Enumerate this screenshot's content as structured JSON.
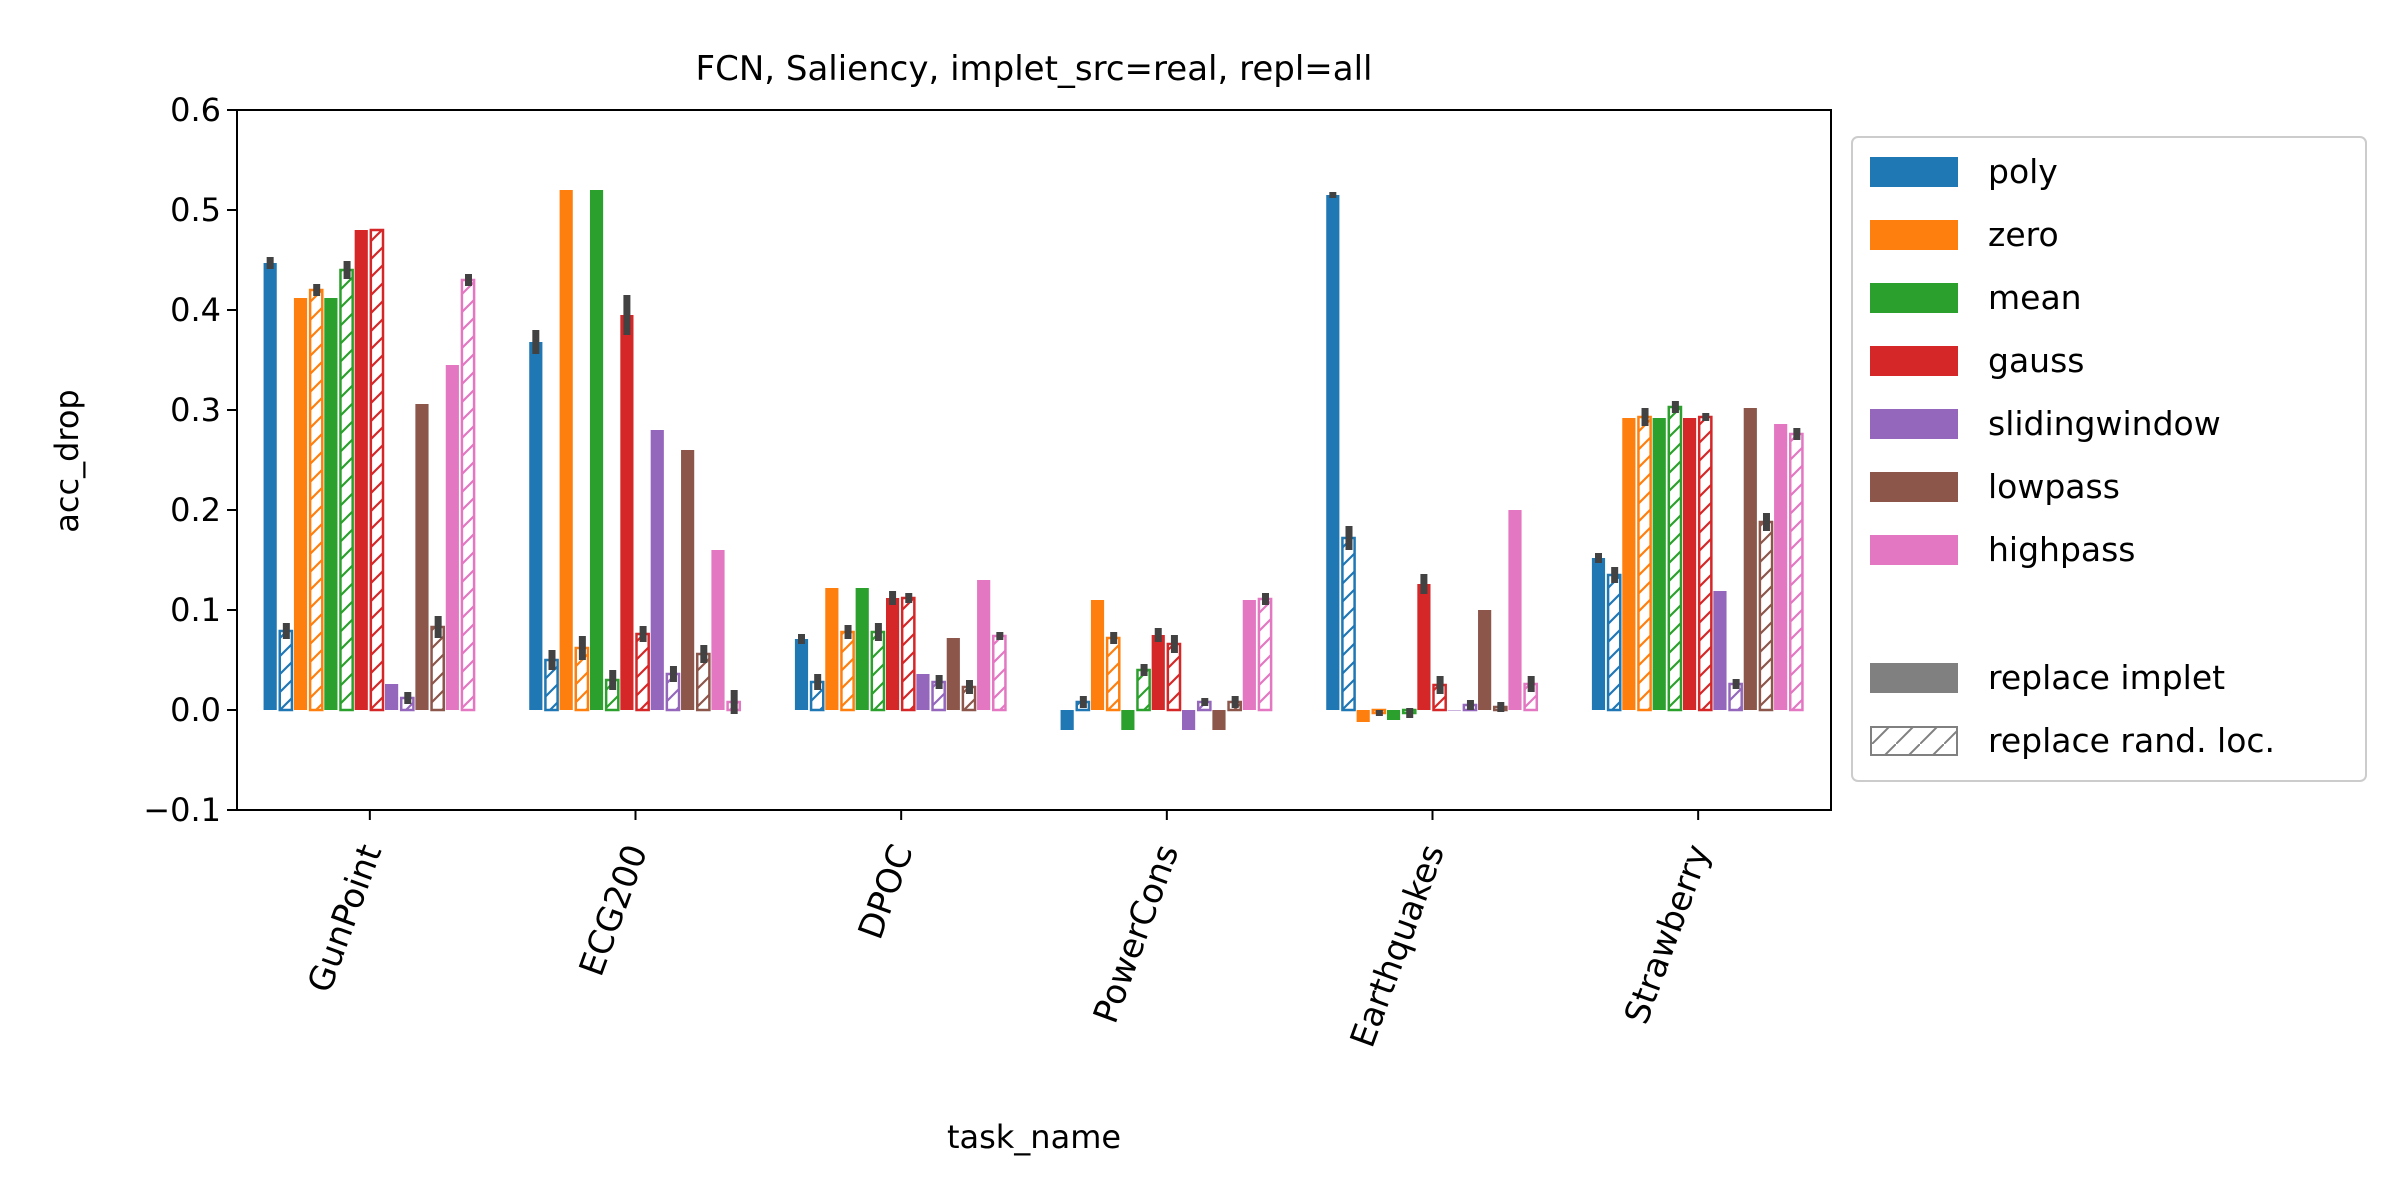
{
  "chart_data": {
    "type": "bar",
    "title": "FCN, Saliency, implet_src=real, repl=all",
    "xlabel": "task_name",
    "ylabel": "acc_drop",
    "ylim": [
      -0.1,
      0.6
    ],
    "yticks": [
      -0.1,
      0.0,
      0.1,
      0.2,
      0.3,
      0.4,
      0.5,
      0.6
    ],
    "ytick_labels": [
      "−0.1",
      "0.0",
      "0.1",
      "0.2",
      "0.3",
      "0.4",
      "0.5",
      "0.6"
    ],
    "categories": [
      "GunPoint",
      "ECG200",
      "DPOC",
      "PowerCons",
      "Earthquakes",
      "Strawberry"
    ],
    "legend_position": "outside-right",
    "grid": false,
    "series": [
      {
        "name": "poly",
        "color": "#1f77b4",
        "implet": [
          0.447,
          0.368,
          0.071,
          -0.02,
          0.515,
          0.152
        ],
        "implet_err": [
          0.006,
          0.012,
          0.005,
          0.0,
          0.003,
          0.005
        ],
        "random": [
          0.079,
          0.05,
          0.028,
          0.008,
          0.172,
          0.135
        ],
        "random_err": [
          0.008,
          0.01,
          0.008,
          0.006,
          0.012,
          0.008
        ]
      },
      {
        "name": "zero",
        "color": "#ff7f0e",
        "implet": [
          0.412,
          0.52,
          0.122,
          0.11,
          -0.012,
          0.292
        ],
        "implet_err": [
          0.0,
          0.0,
          0.0,
          0.0,
          0.0,
          0.0
        ],
        "random": [
          0.42,
          0.062,
          0.078,
          0.072,
          -0.003,
          0.293
        ],
        "random_err": [
          0.006,
          0.012,
          0.007,
          0.006,
          0.003,
          0.009
        ]
      },
      {
        "name": "mean",
        "color": "#2ca02c",
        "implet": [
          0.412,
          0.52,
          0.122,
          -0.02,
          -0.01,
          0.292
        ],
        "implet_err": [
          0.0,
          0.0,
          0.0,
          0.0,
          0.0,
          0.0
        ],
        "random": [
          0.44,
          0.03,
          0.078,
          0.04,
          -0.003,
          0.303
        ],
        "random_err": [
          0.009,
          0.01,
          0.009,
          0.006,
          0.005,
          0.006
        ]
      },
      {
        "name": "gauss",
        "color": "#d62728",
        "implet": [
          0.48,
          0.395,
          0.112,
          0.075,
          0.126,
          0.292
        ],
        "implet_err": [
          0.0,
          0.02,
          0.007,
          0.007,
          0.01,
          0.0
        ],
        "random": [
          0.48,
          0.076,
          0.112,
          0.066,
          0.025,
          0.293
        ],
        "random_err": [
          0.0,
          0.008,
          0.005,
          0.009,
          0.009,
          0.004
        ]
      },
      {
        "name": "slidingwindow",
        "color": "#9467bd",
        "implet": [
          0.026,
          0.28,
          0.036,
          -0.02,
          0.0,
          0.119
        ],
        "implet_err": [
          0.0,
          0.0,
          0.0,
          0.0,
          0.0,
          0.0
        ],
        "random": [
          0.012,
          0.036,
          0.028,
          0.008,
          0.005,
          0.026
        ],
        "random_err": [
          0.006,
          0.008,
          0.007,
          0.004,
          0.005,
          0.005
        ]
      },
      {
        "name": "lowpass",
        "color": "#8c564b",
        "implet": [
          0.306,
          0.26,
          0.072,
          -0.02,
          0.1,
          0.302
        ],
        "implet_err": [
          0.0,
          0.0,
          0.0,
          0.0,
          0.0,
          0.0
        ],
        "random": [
          0.083,
          0.056,
          0.023,
          0.008,
          0.003,
          0.188
        ],
        "random_err": [
          0.011,
          0.009,
          0.007,
          0.006,
          0.005,
          0.009
        ]
      },
      {
        "name": "highpass",
        "color": "#e377c2",
        "implet": [
          0.345,
          0.16,
          0.13,
          0.11,
          0.2,
          0.286
        ],
        "implet_err": [
          0.0,
          0.0,
          0.0,
          0.0,
          0.0,
          0.0
        ],
        "random": [
          0.43,
          0.008,
          0.074,
          0.111,
          0.026,
          0.276
        ],
        "random_err": [
          0.006,
          0.012,
          0.004,
          0.006,
          0.008,
          0.006
        ]
      }
    ],
    "style_legend": [
      {
        "name": "replace implet",
        "style": "solid"
      },
      {
        "name": "replace rand. loc.",
        "style": "hatched"
      }
    ]
  }
}
